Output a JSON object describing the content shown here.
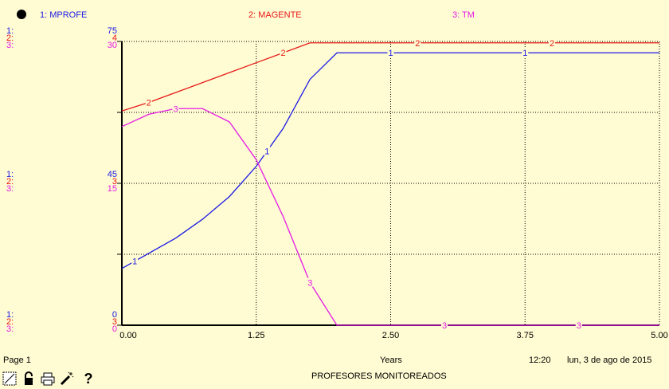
{
  "chart_data": {
    "type": "line",
    "title": "PROFESORES MONITOREADOS",
    "xlabel": "Years",
    "xlim": [
      0,
      5
    ],
    "x_ticks": [
      "0.00",
      "1.25",
      "2.50",
      "3.75",
      "5.00"
    ],
    "series": [
      {
        "id": "1",
        "name": "MPROFE",
        "header": "1: MPROFE",
        "color": "#1a1ae6",
        "ylim": [
          0,
          75
        ],
        "axis_labels": [
          "0",
          "45",
          "75"
        ],
        "x": [
          0,
          0.25,
          0.5,
          0.75,
          1.0,
          1.25,
          1.5,
          1.75,
          2.0,
          2.5,
          3.0,
          3.5,
          4.0,
          4.5,
          5.0
        ],
        "values": [
          15,
          19,
          23,
          28,
          34,
          42,
          52,
          65,
          72,
          72,
          72,
          72,
          72,
          72,
          72
        ]
      },
      {
        "id": "2",
        "name": "MAGENTE",
        "header": "2: MAGENTE",
        "color": "#e61a1a",
        "ylim": [
          0,
          4
        ],
        "axis_labels": [
          "3",
          "3",
          "4"
        ],
        "x": [
          0,
          0.25,
          0.5,
          0.75,
          1.0,
          1.25,
          1.5,
          1.75,
          2.0,
          2.5,
          3.0,
          3.5,
          4.0,
          4.5,
          5.0
        ],
        "values": [
          3.02,
          3.14,
          3.28,
          3.42,
          3.56,
          3.7,
          3.84,
          3.98,
          3.98,
          3.98,
          3.98,
          3.98,
          3.98,
          3.98,
          3.98
        ]
      },
      {
        "id": "3",
        "name": "TM",
        "header": "3: TM",
        "color": "#e61ae6",
        "ylim": [
          0,
          30
        ],
        "axis_labels": [
          "0",
          "15",
          "30"
        ],
        "x": [
          0,
          0.25,
          0.5,
          0.75,
          1.0,
          1.25,
          1.5,
          1.75,
          2.0,
          2.5,
          3.0,
          3.5,
          4.0,
          4.5,
          5.0
        ],
        "values": [
          21,
          22.3,
          22.9,
          22.9,
          21.5,
          17.5,
          11.5,
          4.5,
          0,
          0,
          0,
          0,
          0,
          0,
          0
        ]
      }
    ],
    "grid": true
  },
  "footer": {
    "page": "Page 1",
    "time": "12:20",
    "date": "lun, 3 de ago de 2015"
  },
  "toolbar": {
    "help_label": "?"
  },
  "colors": {
    "background": "#fffbd2",
    "axis": "#000000",
    "grid": "#000000"
  }
}
